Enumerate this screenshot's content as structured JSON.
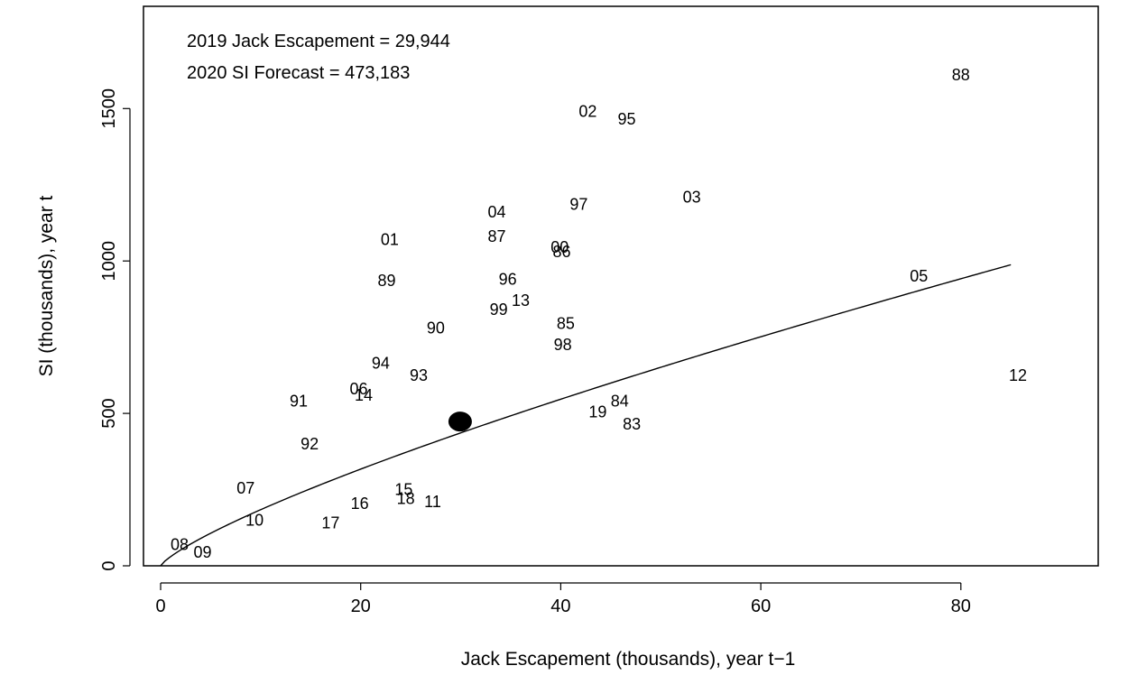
{
  "chart_data": {
    "type": "scatter",
    "xlabel": "Jack Escapement (thousands), year t−1",
    "ylabel": "SI (thousands), year t",
    "xlim": [
      0,
      94
    ],
    "ylim": [
      0,
      1780
    ],
    "xticks": [
      0,
      20,
      40,
      60,
      80
    ],
    "yticks": [
      0,
      500,
      1000,
      1500
    ],
    "annotations": [
      "2019 Jack Escapement = 29,944",
      "2020 SI Forecast = 473,183"
    ],
    "points": [
      {
        "label": "88",
        "x": 80.0,
        "y": 1610
      },
      {
        "label": "02",
        "x": 42.7,
        "y": 1490
      },
      {
        "label": "95",
        "x": 46.6,
        "y": 1465
      },
      {
        "label": "03",
        "x": 53.1,
        "y": 1210
      },
      {
        "label": "97",
        "x": 41.8,
        "y": 1185
      },
      {
        "label": "04",
        "x": 33.6,
        "y": 1160
      },
      {
        "label": "87",
        "x": 33.6,
        "y": 1080
      },
      {
        "label": "01",
        "x": 22.9,
        "y": 1070
      },
      {
        "label": "00",
        "x": 39.9,
        "y": 1045
      },
      {
        "label": "86",
        "x": 40.1,
        "y": 1030
      },
      {
        "label": "05",
        "x": 75.8,
        "y": 950
      },
      {
        "label": "96",
        "x": 34.7,
        "y": 940
      },
      {
        "label": "89",
        "x": 22.6,
        "y": 935
      },
      {
        "label": "13",
        "x": 36.0,
        "y": 870
      },
      {
        "label": "99",
        "x": 33.8,
        "y": 840
      },
      {
        "label": "85",
        "x": 40.5,
        "y": 795
      },
      {
        "label": "90",
        "x": 27.5,
        "y": 780
      },
      {
        "label": "98",
        "x": 40.2,
        "y": 725
      },
      {
        "label": "94",
        "x": 22.0,
        "y": 665
      },
      {
        "label": "12",
        "x": 85.7,
        "y": 625
      },
      {
        "label": "93",
        "x": 25.8,
        "y": 625
      },
      {
        "label": "06",
        "x": 19.8,
        "y": 580
      },
      {
        "label": "14",
        "x": 20.3,
        "y": 560
      },
      {
        "label": "91",
        "x": 13.8,
        "y": 540
      },
      {
        "label": "84",
        "x": 45.9,
        "y": 540
      },
      {
        "label": "19",
        "x": 43.7,
        "y": 505
      },
      {
        "label": "83",
        "x": 47.1,
        "y": 465
      },
      {
        "label": "92",
        "x": 14.9,
        "y": 400
      },
      {
        "label": "07",
        "x": 8.5,
        "y": 255
      },
      {
        "label": "15",
        "x": 24.3,
        "y": 250
      },
      {
        "label": "18",
        "x": 24.5,
        "y": 220
      },
      {
        "label": "16",
        "x": 19.9,
        "y": 205
      },
      {
        "label": "11",
        "x": 27.2,
        "y": 210
      },
      {
        "label": "10",
        "x": 9.4,
        "y": 150
      },
      {
        "label": "17",
        "x": 17.0,
        "y": 140
      },
      {
        "label": "08",
        "x": 1.9,
        "y": 70
      },
      {
        "label": "09",
        "x": 4.2,
        "y": 45
      }
    ],
    "forecast_point": {
      "x": 29.944,
      "y": 473.183
    },
    "fit_curve": {
      "type": "power",
      "a": 30.2,
      "b": 0.785,
      "x_max": 85
    }
  }
}
